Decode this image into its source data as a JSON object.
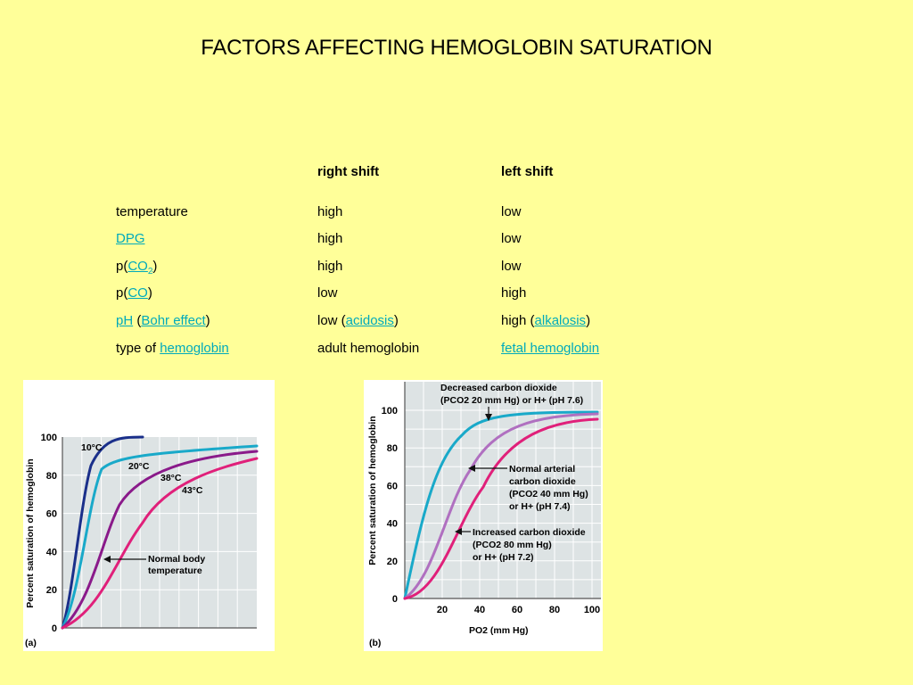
{
  "title": "FACTORS AFFECTING HEMOGLOBIN SATURATION",
  "table": {
    "headers": [
      "right shift",
      "left shift"
    ],
    "rows": [
      {
        "factor": {
          "text": "temperature"
        },
        "right": {
          "text": "high"
        },
        "left": {
          "text": "low"
        }
      },
      {
        "factor": {
          "link": "DPG"
        },
        "right": {
          "text": "high"
        },
        "left": {
          "text": "low"
        }
      },
      {
        "factor": {
          "pre": "p(",
          "link": "CO",
          "sub": "2",
          "post": ")"
        },
        "right": {
          "text": "high"
        },
        "left": {
          "text": "low"
        }
      },
      {
        "factor": {
          "pre": "p(",
          "link": "CO",
          "post": ")"
        },
        "right": {
          "text": "low"
        },
        "left": {
          "text": "high"
        }
      },
      {
        "factor": {
          "link": "pH",
          "mid": " (",
          "link2": "Bohr effect",
          "post": ")"
        },
        "right": {
          "pre": "low (",
          "link": "acidosis",
          "post": ")"
        },
        "left": {
          "pre": "high (",
          "link": "alkalosis",
          "post": ")"
        }
      },
      {
        "factor": {
          "pre": "type of ",
          "link": "hemoglobin"
        },
        "right": {
          "text": "adult hemoglobin"
        },
        "left": {
          "link": "fetal hemoglobin"
        }
      }
    ]
  },
  "figure_a": {
    "panel_label": "(a)",
    "ylabel": "Percent saturation of hemoglobin",
    "yticks": [
      "0",
      "20",
      "40",
      "60",
      "80",
      "100"
    ],
    "curve_labels": [
      "10°C",
      "20°C",
      "38°C",
      "43°C"
    ],
    "annotation": [
      "Normal body",
      "temperature"
    ]
  },
  "figure_b": {
    "panel_label": "(b)",
    "ylabel": "Percent saturation of hemoglobin",
    "yticks": [
      "0",
      "20",
      "40",
      "60",
      "80",
      "100"
    ],
    "xticks": [
      "20",
      "40",
      "60",
      "80",
      "100"
    ],
    "xlabel": "PO2 (mm Hg)",
    "annotations": {
      "decreased": [
        "Decreased carbon dioxide",
        "(PCO2 20 mm Hg) or H+ (pH 7.6)"
      ],
      "normal": [
        "Normal arterial",
        "carbon dioxide",
        "(PCO2 40 mm Hg)",
        "or H+ (pH 7.4)"
      ],
      "increased": [
        "Increased carbon dioxide",
        "(PCO2 80 mm Hg)",
        "or H+ (pH 7.2)"
      ]
    }
  },
  "colors": {
    "background": "#ffff99",
    "link": "#00aabb",
    "grid_bg": "#dde3e4",
    "curve_10C": "#1a2f8a",
    "curve_20C": "#19a9c9",
    "curve_38C": "#8a1a8a",
    "curve_43C": "#e0207a",
    "curve_pH76": "#19a9c9",
    "curve_pH74": "#b070c0",
    "curve_pH72": "#e0207a"
  }
}
